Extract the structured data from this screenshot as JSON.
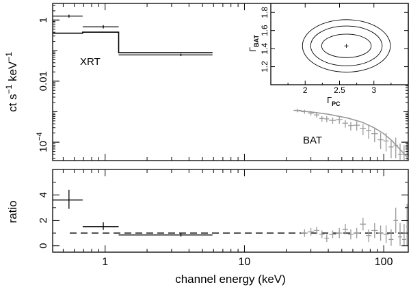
{
  "chart_data": [
    {
      "type": "step",
      "panel": "spectrum",
      "ylabel": "ct s^-1 keV^-1",
      "ylabel_parts": {
        "base": "ct s",
        "exp1": "−1",
        "mid": " keV",
        "exp2": "−1"
      },
      "log_x": true,
      "log_y": true,
      "xlim": [
        0.42,
        150
      ],
      "ylim": [
        2.5e-05,
        3.5
      ],
      "y_ticks": [
        {
          "value": 1,
          "label": "1"
        },
        {
          "value": 0.01,
          "label": "0.01"
        },
        {
          "value": 0.0001,
          "label": "10",
          "sup": "−4"
        }
      ],
      "annotations": {
        "xrt": "XRT",
        "bat": "BAT"
      },
      "series": [
        {
          "name": "XRT",
          "color": "#000000",
          "model": [
            {
              "x0": 0.42,
              "x1": 0.69,
              "y": 0.37
            },
            {
              "x0": 0.69,
              "x1": 1.25,
              "y": 0.4
            },
            {
              "x0": 1.25,
              "x1": 5.9,
              "y": 0.085
            }
          ],
          "points": [
            {
              "x": 0.55,
              "xlo": 0.42,
              "xhi": 0.69,
              "y": 1.35,
              "ylo": 1.2,
              "yhi": 1.5
            },
            {
              "x": 0.97,
              "xlo": 0.69,
              "xhi": 1.25,
              "y": 0.6,
              "ylo": 0.53,
              "yhi": 0.68
            },
            {
              "x": 3.5,
              "xlo": 1.25,
              "xhi": 5.9,
              "y": 0.072,
              "ylo": 0.066,
              "yhi": 0.079
            }
          ]
        },
        {
          "name": "BAT",
          "color": "#999999",
          "model": [
            {
              "x": 23,
              "y": 0.0011
            },
            {
              "x": 30,
              "y": 0.00098
            },
            {
              "x": 40,
              "y": 0.00082
            },
            {
              "x": 55,
              "y": 0.00062
            },
            {
              "x": 70,
              "y": 0.00045
            },
            {
              "x": 85,
              "y": 0.0003
            },
            {
              "x": 100,
              "y": 0.00019
            },
            {
              "x": 115,
              "y": 0.00011
            },
            {
              "x": 130,
              "y": 6e-05
            },
            {
              "x": 150,
              "y": 3e-05
            }
          ],
          "points": [
            {
              "x": 24,
              "xlo": 22.5,
              "xhi": 25.5,
              "y": 0.0011,
              "ylo": 0.00095,
              "yhi": 0.00125
            },
            {
              "x": 27,
              "xlo": 25.5,
              "xhi": 28.5,
              "y": 0.001,
              "ylo": 0.00085,
              "yhi": 0.00115
            },
            {
              "x": 30,
              "xlo": 28.5,
              "xhi": 31.5,
              "y": 0.0009,
              "ylo": 0.00075,
              "yhi": 0.00105
            },
            {
              "x": 33,
              "xlo": 31.5,
              "xhi": 34.5,
              "y": 0.00078,
              "ylo": 0.00064,
              "yhi": 0.00092
            },
            {
              "x": 36,
              "xlo": 34.5,
              "xhi": 37.5,
              "y": 0.0006,
              "ylo": 0.00047,
              "yhi": 0.00072
            },
            {
              "x": 39,
              "xlo": 37.5,
              "xhi": 40.5,
              "y": 0.00058,
              "ylo": 0.00045,
              "yhi": 0.00071
            },
            {
              "x": 43,
              "xlo": 40.5,
              "xhi": 45.5,
              "y": 0.00052,
              "ylo": 0.0004,
              "yhi": 0.00064
            },
            {
              "x": 48,
              "xlo": 45.5,
              "xhi": 50.5,
              "y": 0.00055,
              "ylo": 0.0004,
              "yhi": 0.0007
            },
            {
              "x": 53,
              "xlo": 50.5,
              "xhi": 55.5,
              "y": 0.00042,
              "ylo": 0.0003,
              "yhi": 0.00054
            },
            {
              "x": 58,
              "xlo": 55.5,
              "xhi": 60.5,
              "y": 0.00035,
              "ylo": 0.00024,
              "yhi": 0.00046
            },
            {
              "x": 64,
              "xlo": 60.5,
              "xhi": 67.5,
              "y": 0.00036,
              "ylo": 0.00024,
              "yhi": 0.00048
            },
            {
              "x": 71,
              "xlo": 67.5,
              "xhi": 74.5,
              "y": 0.00028,
              "ylo": 0.00017,
              "yhi": 0.00039
            },
            {
              "x": 78,
              "xlo": 74.5,
              "xhi": 81.5,
              "y": 0.00024,
              "ylo": 0.00013,
              "yhi": 0.00035
            },
            {
              "x": 86,
              "xlo": 81.5,
              "xhi": 90.5,
              "y": 0.00019,
              "ylo": 0.0001,
              "yhi": 0.00028
            },
            {
              "x": 95,
              "xlo": 90.5,
              "xhi": 99.5,
              "y": 0.00012,
              "ylo": 6e-05,
              "yhi": 0.0002
            },
            {
              "x": 104,
              "xlo": 99.5,
              "xhi": 108.5,
              "y": 0.00011,
              "ylo": 5e-05,
              "yhi": 0.0002
            },
            {
              "x": 113,
              "xlo": 108.5,
              "xhi": 117.5,
              "y": 7e-05,
              "ylo": 3e-05,
              "yhi": 0.00012
            },
            {
              "x": 122,
              "xlo": 117.5,
              "xhi": 126.5,
              "y": 8e-05,
              "ylo": 3e-05,
              "yhi": 0.00014
            },
            {
              "x": 131,
              "xlo": 126.5,
              "xhi": 135.5,
              "y": 4e-05,
              "ylo": 2.6e-05,
              "yhi": 9e-05
            },
            {
              "x": 140,
              "xlo": 135.5,
              "xhi": 145,
              "y": 4e-05,
              "ylo": 2.6e-05,
              "yhi": 8e-05
            },
            {
              "x": 147,
              "xlo": 145,
              "xhi": 150,
              "y": 5e-05,
              "ylo": 2.6e-05,
              "yhi": 0.0001
            }
          ]
        }
      ]
    },
    {
      "type": "scatter",
      "panel": "ratio",
      "xlabel": "channel energy (keV)",
      "ylabel": "ratio",
      "log_x": true,
      "xlim": [
        0.42,
        150
      ],
      "ylim": [
        -0.5,
        6
      ],
      "x_ticks": [
        {
          "value": 1,
          "label": "1"
        },
        {
          "value": 10,
          "label": "10"
        },
        {
          "value": 100,
          "label": "100"
        }
      ],
      "y_ticks": [
        {
          "value": 0,
          "label": "0"
        },
        {
          "value": 2,
          "label": "2"
        },
        {
          "value": 4,
          "label": "4"
        }
      ],
      "reference_line": 1,
      "series": [
        {
          "name": "XRT",
          "color": "#000000",
          "points": [
            {
              "x": 0.55,
              "xlo": 0.42,
              "xhi": 0.69,
              "y": 3.6,
              "ylo": 2.9,
              "yhi": 4.4
            },
            {
              "x": 0.97,
              "xlo": 0.69,
              "xhi": 1.25,
              "y": 1.5,
              "ylo": 1.25,
              "yhi": 1.85
            },
            {
              "x": 3.5,
              "xlo": 1.25,
              "xhi": 5.9,
              "y": 0.85,
              "ylo": 0.72,
              "yhi": 1.0
            }
          ]
        },
        {
          "name": "BAT",
          "color": "#999999",
          "points": [
            {
              "x": 27,
              "xlo": 25.5,
              "xhi": 28.5,
              "y": 1.0,
              "ylo": 0.7,
              "yhi": 1.3
            },
            {
              "x": 30,
              "xlo": 28.5,
              "xhi": 31.5,
              "y": 1.1,
              "ylo": 0.8,
              "yhi": 1.4
            },
            {
              "x": 33,
              "xlo": 31.5,
              "xhi": 34.5,
              "y": 1.2,
              "ylo": 0.9,
              "yhi": 1.5
            },
            {
              "x": 36,
              "xlo": 34.5,
              "xhi": 37.5,
              "y": 0.9,
              "ylo": 0.6,
              "yhi": 1.2
            },
            {
              "x": 39,
              "xlo": 37.5,
              "xhi": 40.5,
              "y": 0.6,
              "ylo": 0.3,
              "yhi": 0.9
            },
            {
              "x": 43,
              "xlo": 40.5,
              "xhi": 45.5,
              "y": 0.9,
              "ylo": 0.6,
              "yhi": 1.2
            },
            {
              "x": 48,
              "xlo": 45.5,
              "xhi": 50.5,
              "y": 1.0,
              "ylo": 0.6,
              "yhi": 1.4
            },
            {
              "x": 53,
              "xlo": 50.5,
              "xhi": 55.5,
              "y": 1.3,
              "ylo": 0.9,
              "yhi": 1.7
            },
            {
              "x": 58,
              "xlo": 55.5,
              "xhi": 60.5,
              "y": 0.9,
              "ylo": 0.5,
              "yhi": 1.3
            },
            {
              "x": 64,
              "xlo": 60.5,
              "xhi": 67.5,
              "y": 1.0,
              "ylo": 0.6,
              "yhi": 1.4
            },
            {
              "x": 71,
              "xlo": 67.5,
              "xhi": 74.5,
              "y": 1.7,
              "ylo": 1.2,
              "yhi": 2.2
            },
            {
              "x": 78,
              "xlo": 74.5,
              "xhi": 81.5,
              "y": 0.8,
              "ylo": 0.3,
              "yhi": 1.3
            },
            {
              "x": 86,
              "xlo": 81.5,
              "xhi": 90.5,
              "y": 1.2,
              "ylo": 0.6,
              "yhi": 1.8
            },
            {
              "x": 95,
              "xlo": 90.5,
              "xhi": 99.5,
              "y": 1.0,
              "ylo": 0.4,
              "yhi": 1.6
            },
            {
              "x": 104,
              "xlo": 99.5,
              "xhi": 108.5,
              "y": 0.9,
              "ylo": 0.2,
              "yhi": 1.6
            },
            {
              "x": 113,
              "xlo": 108.5,
              "xhi": 117.5,
              "y": 0.5,
              "ylo": 0.0,
              "yhi": 1.3
            },
            {
              "x": 122,
              "xlo": 117.5,
              "xhi": 126.5,
              "y": 2.0,
              "ylo": 1.0,
              "yhi": 3.0
            },
            {
              "x": 131,
              "xlo": 126.5,
              "xhi": 135.5,
              "y": 0.7,
              "ylo": 0.0,
              "yhi": 1.8
            },
            {
              "x": 140,
              "xlo": 135.5,
              "xhi": 145,
              "y": 0.5,
              "ylo": 0.0,
              "yhi": 1.7
            },
            {
              "x": 147,
              "xlo": 145,
              "xhi": 150,
              "y": 1.5,
              "ylo": 0.0,
              "yhi": 3.3
            }
          ]
        }
      ]
    },
    {
      "type": "contour",
      "panel": "inset",
      "xlabel": "Γ",
      "xlabel_sub": "PC",
      "ylabel": "Γ",
      "ylabel_sub": "BAT",
      "xlim": [
        1.5,
        3.5
      ],
      "ylim": [
        1.0,
        1.9
      ],
      "x_ticks": [
        {
          "value": 2,
          "label": "2"
        },
        {
          "value": 2.5,
          "label": "2.5"
        },
        {
          "value": 3,
          "label": "3"
        }
      ],
      "y_ticks": [
        {
          "value": 1.2,
          "label": "1.2"
        },
        {
          "value": 1.4,
          "label": "1.4"
        },
        {
          "value": 1.6,
          "label": "1.6"
        },
        {
          "value": 1.8,
          "label": "1.8"
        }
      ],
      "best_fit": {
        "x": 2.6,
        "y": 1.43
      },
      "contours": [
        {
          "cx": 2.6,
          "cy": 1.43,
          "rx": 0.36,
          "ry": 0.13
        },
        {
          "cx": 2.6,
          "cy": 1.43,
          "rx": 0.52,
          "ry": 0.22
        },
        {
          "cx": 2.6,
          "cy": 1.43,
          "rx": 0.64,
          "ry": 0.29
        }
      ]
    }
  ]
}
